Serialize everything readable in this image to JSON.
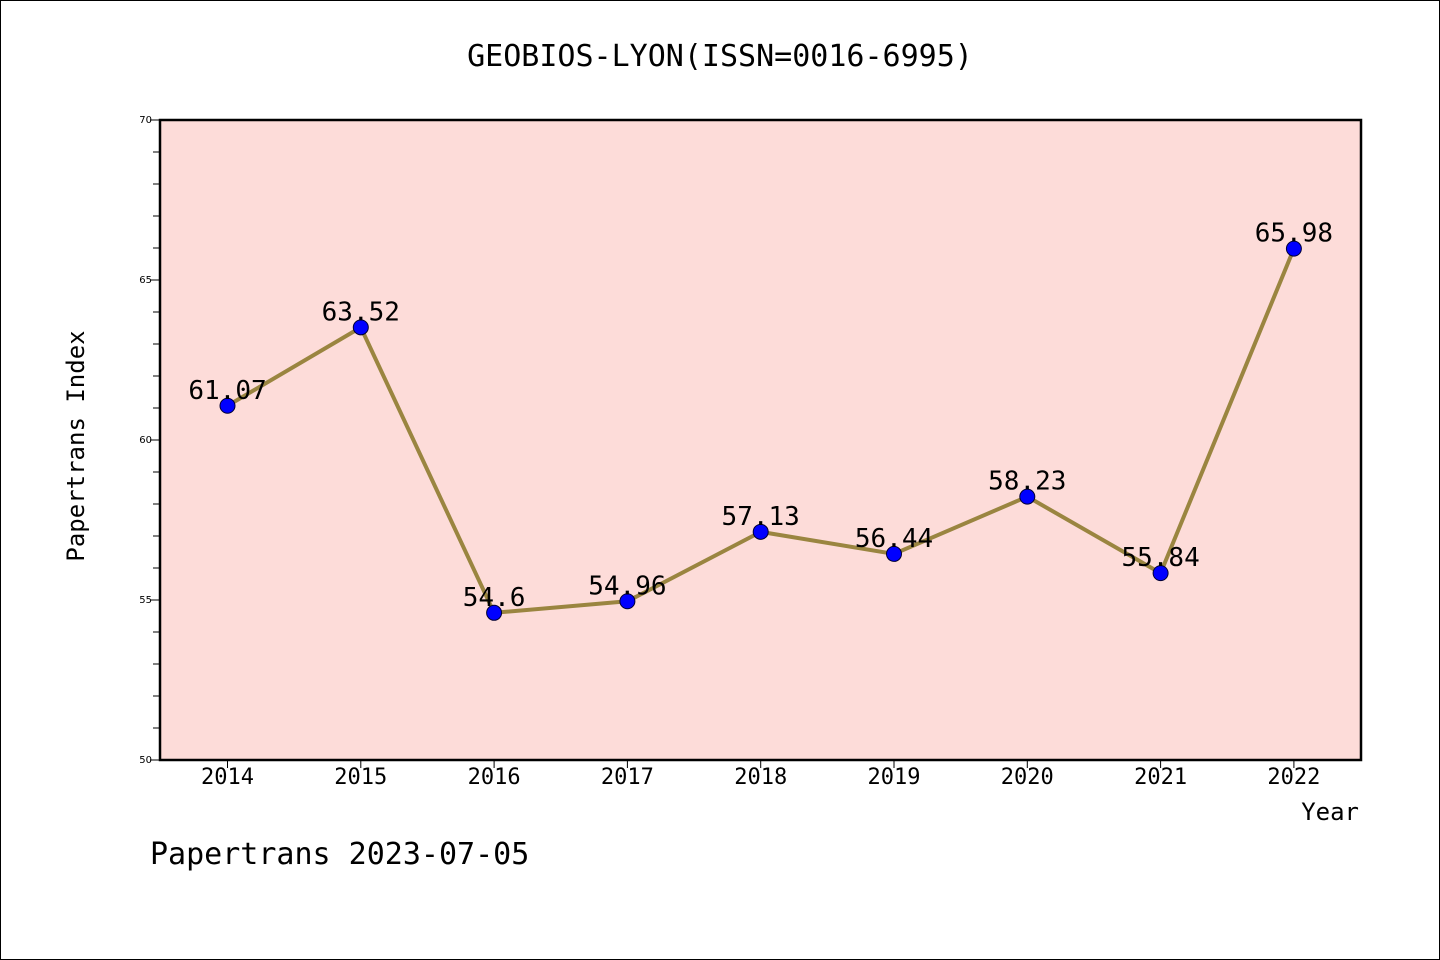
{
  "chart_data": {
    "type": "line",
    "title": "GEOBIOS-LYON(ISSN=0016-6995)",
    "xlabel": "Year",
    "ylabel": "Papertrans Index",
    "categories": [
      "2014",
      "2015",
      "2016",
      "2017",
      "2018",
      "2019",
      "2020",
      "2021",
      "2022"
    ],
    "values": [
      61.07,
      63.52,
      54.6,
      54.96,
      57.13,
      56.44,
      58.23,
      55.84,
      65.98
    ],
    "data_labels": [
      "61.07",
      "63.52",
      "54.6",
      "54.96",
      "57.13",
      "56.44",
      "58.23",
      "55.84",
      "65.98"
    ],
    "ylim": [
      50,
      70
    ],
    "yticks": [
      50,
      55,
      60,
      65,
      70
    ],
    "grid": false,
    "legend": "none",
    "colors": {
      "plot_background": "#fddcd9",
      "line": "#9a8540",
      "marker": "#0000ff"
    }
  },
  "footer": "Papertrans 2023-07-05"
}
